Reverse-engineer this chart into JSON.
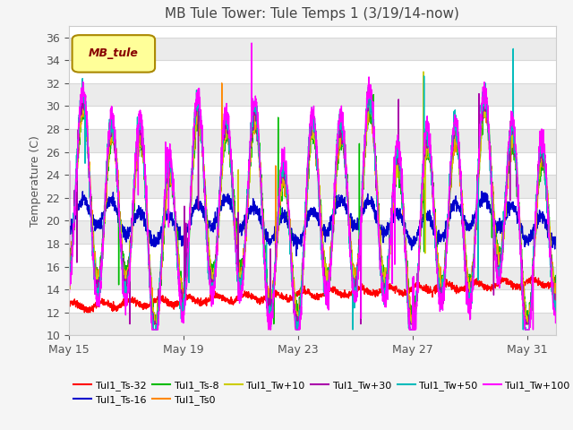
{
  "title": "MB Tule Tower: Tule Temps 1 (3/19/14-now)",
  "ylabel": "Temperature (C)",
  "ylim": [
    10,
    37
  ],
  "yticks": [
    10,
    12,
    14,
    16,
    18,
    20,
    22,
    24,
    26,
    28,
    30,
    32,
    34,
    36
  ],
  "xtick_labels": [
    "May 15",
    "May 19",
    "May 23",
    "May 27",
    "May 31"
  ],
  "xtick_positions": [
    0,
    4,
    8,
    12,
    16
  ],
  "n_days": 17,
  "series_order": [
    "Tul1_Ts-32",
    "Tul1_Ts-16",
    "Tul1_Ts-8",
    "Tul1_Ts0",
    "Tul1_Tw+10",
    "Tul1_Tw+30",
    "Tul1_Tw+50",
    "Tul1_Tw+100"
  ],
  "series": {
    "Tul1_Ts-32": {
      "color": "#ff0000",
      "lw": 1.0
    },
    "Tul1_Ts-16": {
      "color": "#0000cc",
      "lw": 1.0
    },
    "Tul1_Ts-8": {
      "color": "#00bb00",
      "lw": 1.0
    },
    "Tul1_Ts0": {
      "color": "#ff8800",
      "lw": 1.0
    },
    "Tul1_Tw+10": {
      "color": "#cccc00",
      "lw": 1.0
    },
    "Tul1_Tw+30": {
      "color": "#aa00aa",
      "lw": 1.0
    },
    "Tul1_Tw+50": {
      "color": "#00bbbb",
      "lw": 1.0
    },
    "Tul1_Tw+100": {
      "color": "#ff00ff",
      "lw": 1.0
    }
  },
  "legend_box_facecolor": "#ffff99",
  "legend_box_edgecolor": "#aa8800",
  "legend_box_text": "MB_tule",
  "legend_text_color": "#880000",
  "plot_bg_color": "#ffffff",
  "fig_bg_color": "#f5f5f5",
  "grid_color": "#d8d8d8",
  "title_color": "#444444",
  "tick_color": "#555555"
}
